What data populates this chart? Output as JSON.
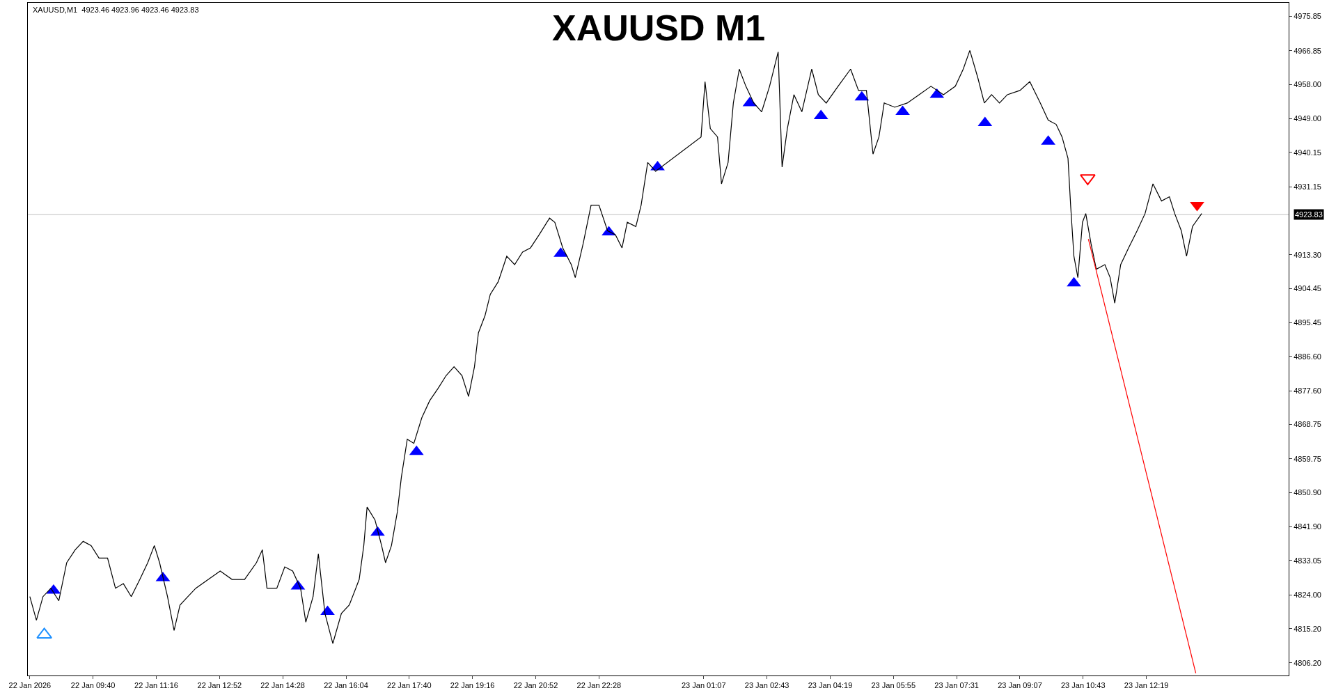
{
  "chart_data": {
    "type": "line",
    "title": "XAUUSD M1",
    "annotations": [
      "XAUUSD,M1  4923.46 4923.96 4923.46 4923.83"
    ],
    "xlim": [
      "2026-01-22T08:01",
      "2026-01-23T15:55"
    ],
    "ylim": [
      4802.9,
      4979.4
    ],
    "xticks": [
      {
        "value": "2026-01-22T08:04",
        "label": "22 Jan 2026"
      },
      {
        "value": "2026-01-22T09:40",
        "label": "22 Jan 09:40"
      },
      {
        "value": "2026-01-22T11:16",
        "label": "22 Jan 11:16"
      },
      {
        "value": "2026-01-22T12:52",
        "label": "22 Jan 12:52"
      },
      {
        "value": "2026-01-22T14:28",
        "label": "22 Jan 14:28"
      },
      {
        "value": "2026-01-22T16:04",
        "label": "22 Jan 16:04"
      },
      {
        "value": "2026-01-22T17:40",
        "label": "22 Jan 17:40"
      },
      {
        "value": "2026-01-22T19:16",
        "label": "22 Jan 19:16"
      },
      {
        "value": "2026-01-22T20:52",
        "label": "22 Jan 20:52"
      },
      {
        "value": "2026-01-22T22:28",
        "label": "22 Jan 22:28"
      },
      {
        "value": "2026-01-23T01:07",
        "label": "23 Jan 01:07"
      },
      {
        "value": "2026-01-23T02:43",
        "label": "23 Jan 02:43"
      },
      {
        "value": "2026-01-23T04:19",
        "label": "23 Jan 04:19"
      },
      {
        "value": "2026-01-23T05:55",
        "label": "23 Jan 05:55"
      },
      {
        "value": "2026-01-23T07:31",
        "label": "23 Jan 07:31"
      },
      {
        "value": "2026-01-23T09:07",
        "label": "23 Jan 09:07"
      },
      {
        "value": "2026-01-23T10:43",
        "label": "23 Jan 10:43"
      },
      {
        "value": "2026-01-23T12:19",
        "label": "23 Jan 12:19"
      }
    ],
    "yticks": [
      {
        "value": 4975.85,
        "label": "4975.85"
      },
      {
        "value": 4966.85,
        "label": "4966.85"
      },
      {
        "value": 4958.0,
        "label": "4958.00"
      },
      {
        "value": 4949.0,
        "label": "4949.00"
      },
      {
        "value": 4940.15,
        "label": "4940.15"
      },
      {
        "value": 4931.15,
        "label": "4931.15"
      },
      {
        "value": 4913.3,
        "label": "4913.30"
      },
      {
        "value": 4904.45,
        "label": "4904.45"
      },
      {
        "value": 4895.45,
        "label": "4895.45"
      },
      {
        "value": 4886.6,
        "label": "4886.60"
      },
      {
        "value": 4877.6,
        "label": "4877.60"
      },
      {
        "value": 4868.75,
        "label": "4868.75"
      },
      {
        "value": 4859.75,
        "label": "4859.75"
      },
      {
        "value": 4850.9,
        "label": "4850.90"
      },
      {
        "value": 4841.9,
        "label": "4841.90"
      },
      {
        "value": 4833.05,
        "label": "4833.05"
      },
      {
        "value": 4824.0,
        "label": "4824.00"
      },
      {
        "value": 4815.2,
        "label": "4815.20"
      },
      {
        "value": 4806.2,
        "label": "4806.20"
      }
    ],
    "ref_lines": [
      {
        "axis": "y",
        "value": 4923.83,
        "label": "4923.83",
        "color": "#c0c0c0"
      }
    ],
    "grid": false,
    "series": [
      {
        "color": "#000000",
        "x": [
          "2026-01-22T08:04",
          "2026-01-22T08:14",
          "2026-01-22T08:24",
          "2026-01-22T08:36",
          "2026-01-22T08:48",
          "2026-01-22T09:00",
          "2026-01-22T09:13",
          "2026-01-22T09:25",
          "2026-01-22T09:37",
          "2026-01-22T09:49",
          "2026-01-22T10:02",
          "2026-01-22T10:14",
          "2026-01-22T10:26",
          "2026-01-22T10:38",
          "2026-01-22T10:51",
          "2026-01-22T11:03",
          "2026-01-22T11:13",
          "2026-01-22T11:21",
          "2026-01-22T11:33",
          "2026-01-22T11:43",
          "2026-01-22T11:52",
          "2026-01-22T12:04",
          "2026-01-22T12:16",
          "2026-01-22T12:35",
          "2026-01-22T12:53",
          "2026-01-22T13:11",
          "2026-01-22T13:30",
          "2026-01-22T13:48",
          "2026-01-22T13:57",
          "2026-01-22T14:04",
          "2026-01-22T14:19",
          "2026-01-22T14:31",
          "2026-01-22T14:43",
          "2026-01-22T14:55",
          "2026-01-22T15:03",
          "2026-01-22T15:14",
          "2026-01-22T15:22",
          "2026-01-22T15:32",
          "2026-01-22T15:44",
          "2026-01-22T15:57",
          "2026-01-22T16:09",
          "2026-01-22T16:24",
          "2026-01-22T16:31",
          "2026-01-22T16:36",
          "2026-01-22T16:48",
          "2026-01-22T16:58",
          "2026-01-22T17:04",
          "2026-01-22T17:13",
          "2026-01-22T17:22",
          "2026-01-22T17:28",
          "2026-01-22T17:37",
          "2026-01-22T17:47",
          "2026-01-22T17:59",
          "2026-01-22T18:11",
          "2026-01-22T18:24",
          "2026-01-22T18:36",
          "2026-01-22T18:48",
          "2026-01-22T19:00",
          "2026-01-22T19:10",
          "2026-01-22T19:19",
          "2026-01-22T19:25",
          "2026-01-22T19:35",
          "2026-01-22T19:43",
          "2026-01-22T19:55",
          "2026-01-22T20:08",
          "2026-01-22T20:20",
          "2026-01-22T20:32",
          "2026-01-22T20:44",
          "2026-01-22T20:57",
          "2026-01-22T21:13",
          "2026-01-22T21:21",
          "2026-01-22T21:33",
          "2026-01-22T21:46",
          "2026-01-22T21:52",
          "2026-01-22T22:04",
          "2026-01-22T22:16",
          "2026-01-22T22:28",
          "2026-01-22T22:41",
          "2026-01-22T22:53",
          "2026-01-22T23:03",
          "2026-01-22T23:11",
          "2026-01-22T23:24",
          "2026-01-22T23:32",
          "2026-01-22T23:42",
          "2026-01-22T23:54",
          "2026-01-23T01:03",
          "2026-01-23T01:09",
          "2026-01-23T01:17",
          "2026-01-23T01:28",
          "2026-01-23T01:34",
          "2026-01-23T01:44",
          "2026-01-23T01:52",
          "2026-01-23T02:01",
          "2026-01-23T02:11",
          "2026-01-23T02:23",
          "2026-01-23T02:35",
          "2026-01-23T02:47",
          "2026-01-23T03:00",
          "2026-01-23T03:06",
          "2026-01-23T03:14",
          "2026-01-23T03:24",
          "2026-01-23T03:36",
          "2026-01-23T03:51",
          "2026-01-23T04:01",
          "2026-01-23T04:13",
          "2026-01-23T04:31",
          "2026-01-23T04:50",
          "2026-01-23T05:02",
          "2026-01-23T05:14",
          "2026-01-23T05:24",
          "2026-01-23T05:33",
          "2026-01-23T05:41",
          "2026-01-23T05:57",
          "2026-01-23T06:16",
          "2026-01-23T06:34",
          "2026-01-23T06:52",
          "2026-01-23T07:11",
          "2026-01-23T07:29",
          "2026-01-23T07:41",
          "2026-01-23T07:51",
          "2026-01-23T08:03",
          "2026-01-23T08:13",
          "2026-01-23T08:24",
          "2026-01-23T08:36",
          "2026-01-23T08:48",
          "2026-01-23T09:07",
          "2026-01-23T09:22",
          "2026-01-23T09:38",
          "2026-01-23T09:50",
          "2026-01-23T10:02",
          "2026-01-23T10:11",
          "2026-01-23T10:20",
          "2026-01-23T10:24",
          "2026-01-23T10:29",
          "2026-01-23T10:35",
          "2026-01-23T10:42",
          "2026-01-23T10:47",
          "2026-01-23T10:55",
          "2026-01-23T11:03",
          "2026-01-23T11:16",
          "2026-01-23T11:24",
          "2026-01-23T11:31",
          "2026-01-23T11:40",
          "2026-01-23T11:52",
          "2026-01-23T12:05",
          "2026-01-23T12:17",
          "2026-01-23T12:29",
          "2026-01-23T12:42",
          "2026-01-23T12:54",
          "2026-01-23T13:02",
          "2026-01-23T13:12",
          "2026-01-23T13:20",
          "2026-01-23T13:29",
          "2026-01-23T13:43"
        ],
        "values": [
          4823.6,
          4817.4,
          4823.6,
          4825.8,
          4822.5,
          4832.5,
          4835.9,
          4838.1,
          4837.0,
          4833.7,
          4833.7,
          4825.8,
          4827.0,
          4823.6,
          4828.1,
          4832.5,
          4837.0,
          4832.5,
          4823.6,
          4814.7,
          4821.4,
          4823.6,
          4825.8,
          4828.1,
          4830.3,
          4828.1,
          4828.1,
          4832.5,
          4835.9,
          4825.8,
          4825.8,
          4831.4,
          4830.3,
          4825.8,
          4816.9,
          4823.6,
          4834.8,
          4819.2,
          4811.3,
          4819.2,
          4821.4,
          4828.1,
          4837.0,
          4847.1,
          4843.7,
          4837.0,
          4832.5,
          4837.0,
          4845.9,
          4854.9,
          4864.9,
          4863.8,
          4870.5,
          4875.0,
          4878.3,
          4881.6,
          4883.9,
          4881.6,
          4876.1,
          4883.9,
          4892.8,
          4897.3,
          4902.9,
          4906.2,
          4912.9,
          4910.7,
          4914.0,
          4915.1,
          4918.5,
          4922.9,
          4921.8,
          4915.1,
          4910.7,
          4907.3,
          4916.2,
          4926.3,
          4926.3,
          4919.6,
          4918.5,
          4915.1,
          4921.8,
          4920.7,
          4926.3,
          4937.5,
          4935.2,
          4944.2,
          4958.7,
          4946.4,
          4944.2,
          4931.9,
          4937.5,
          4953.1,
          4962.0,
          4957.5,
          4953.1,
          4950.8,
          4957.5,
          4966.5,
          4936.3,
          4946.4,
          4955.3,
          4950.8,
          4962.0,
          4955.3,
          4953.1,
          4957.5,
          4962.0,
          4956.4,
          4956.4,
          4939.7,
          4944.2,
          4953.1,
          4952.0,
          4953.1,
          4955.3,
          4957.5,
          4955.3,
          4957.5,
          4962.0,
          4966.9,
          4959.8,
          4953.1,
          4955.3,
          4953.1,
          4955.3,
          4956.4,
          4958.7,
          4953.1,
          4948.6,
          4947.5,
          4944.2,
          4938.6,
          4926.3,
          4912.9,
          4907.3,
          4921.8,
          4924.1,
          4916.2,
          4909.5,
          4910.7,
          4907.3,
          4900.6,
          4910.7,
          4915.1,
          4919.6,
          4924.1,
          4931.9,
          4927.4,
          4928.5,
          4924.1,
          4919.6,
          4912.9,
          4920.7,
          4924.1
        ]
      },
      {
        "type": "scatter",
        "color": "#0000ff",
        "marker": "triangle",
        "x": [
          "2026-01-22T08:40",
          "2026-01-22T11:26",
          "2026-01-22T14:51",
          "2026-01-22T15:36",
          "2026-01-22T16:52",
          "2026-01-22T17:51",
          "2026-01-22T21:30",
          "2026-01-22T22:43",
          "2026-01-22T23:57",
          "2026-01-23T02:17",
          "2026-01-23T04:05",
          "2026-01-23T05:07",
          "2026-01-23T06:09",
          "2026-01-23T07:01",
          "2026-01-23T08:14",
          "2026-01-23T09:50",
          "2026-01-23T10:29"
        ],
        "values": [
          4825.2,
          4828.5,
          4826.3,
          4819.6,
          4840.4,
          4861.6,
          4913.6,
          4919.2,
          4936.3,
          4953.1,
          4949.7,
          4954.6,
          4950.8,
          4955.3,
          4947.9,
          4943.0,
          4905.8
        ]
      },
      {
        "type": "scatter",
        "color": "#1e90ff",
        "marker": "triangle-open",
        "x": [
          "2026-01-22T08:26"
        ],
        "values": [
          4813.6
        ]
      },
      {
        "type": "scatter",
        "color": "#ff0000",
        "marker": "triangle-down-open",
        "x": [
          "2026-01-23T10:50"
        ],
        "values": [
          4933.4
        ]
      },
      {
        "type": "scatter",
        "color": "#ff0000",
        "marker": "triangle-down",
        "x": [
          "2026-01-23T13:36"
        ],
        "values": [
          4926.3
        ]
      },
      {
        "type": "line",
        "color": "#ff0000",
        "x": [
          "2026-01-23T10:51",
          "2026-01-23T13:34"
        ],
        "values": [
          4917.4,
          4803.5
        ]
      }
    ]
  }
}
